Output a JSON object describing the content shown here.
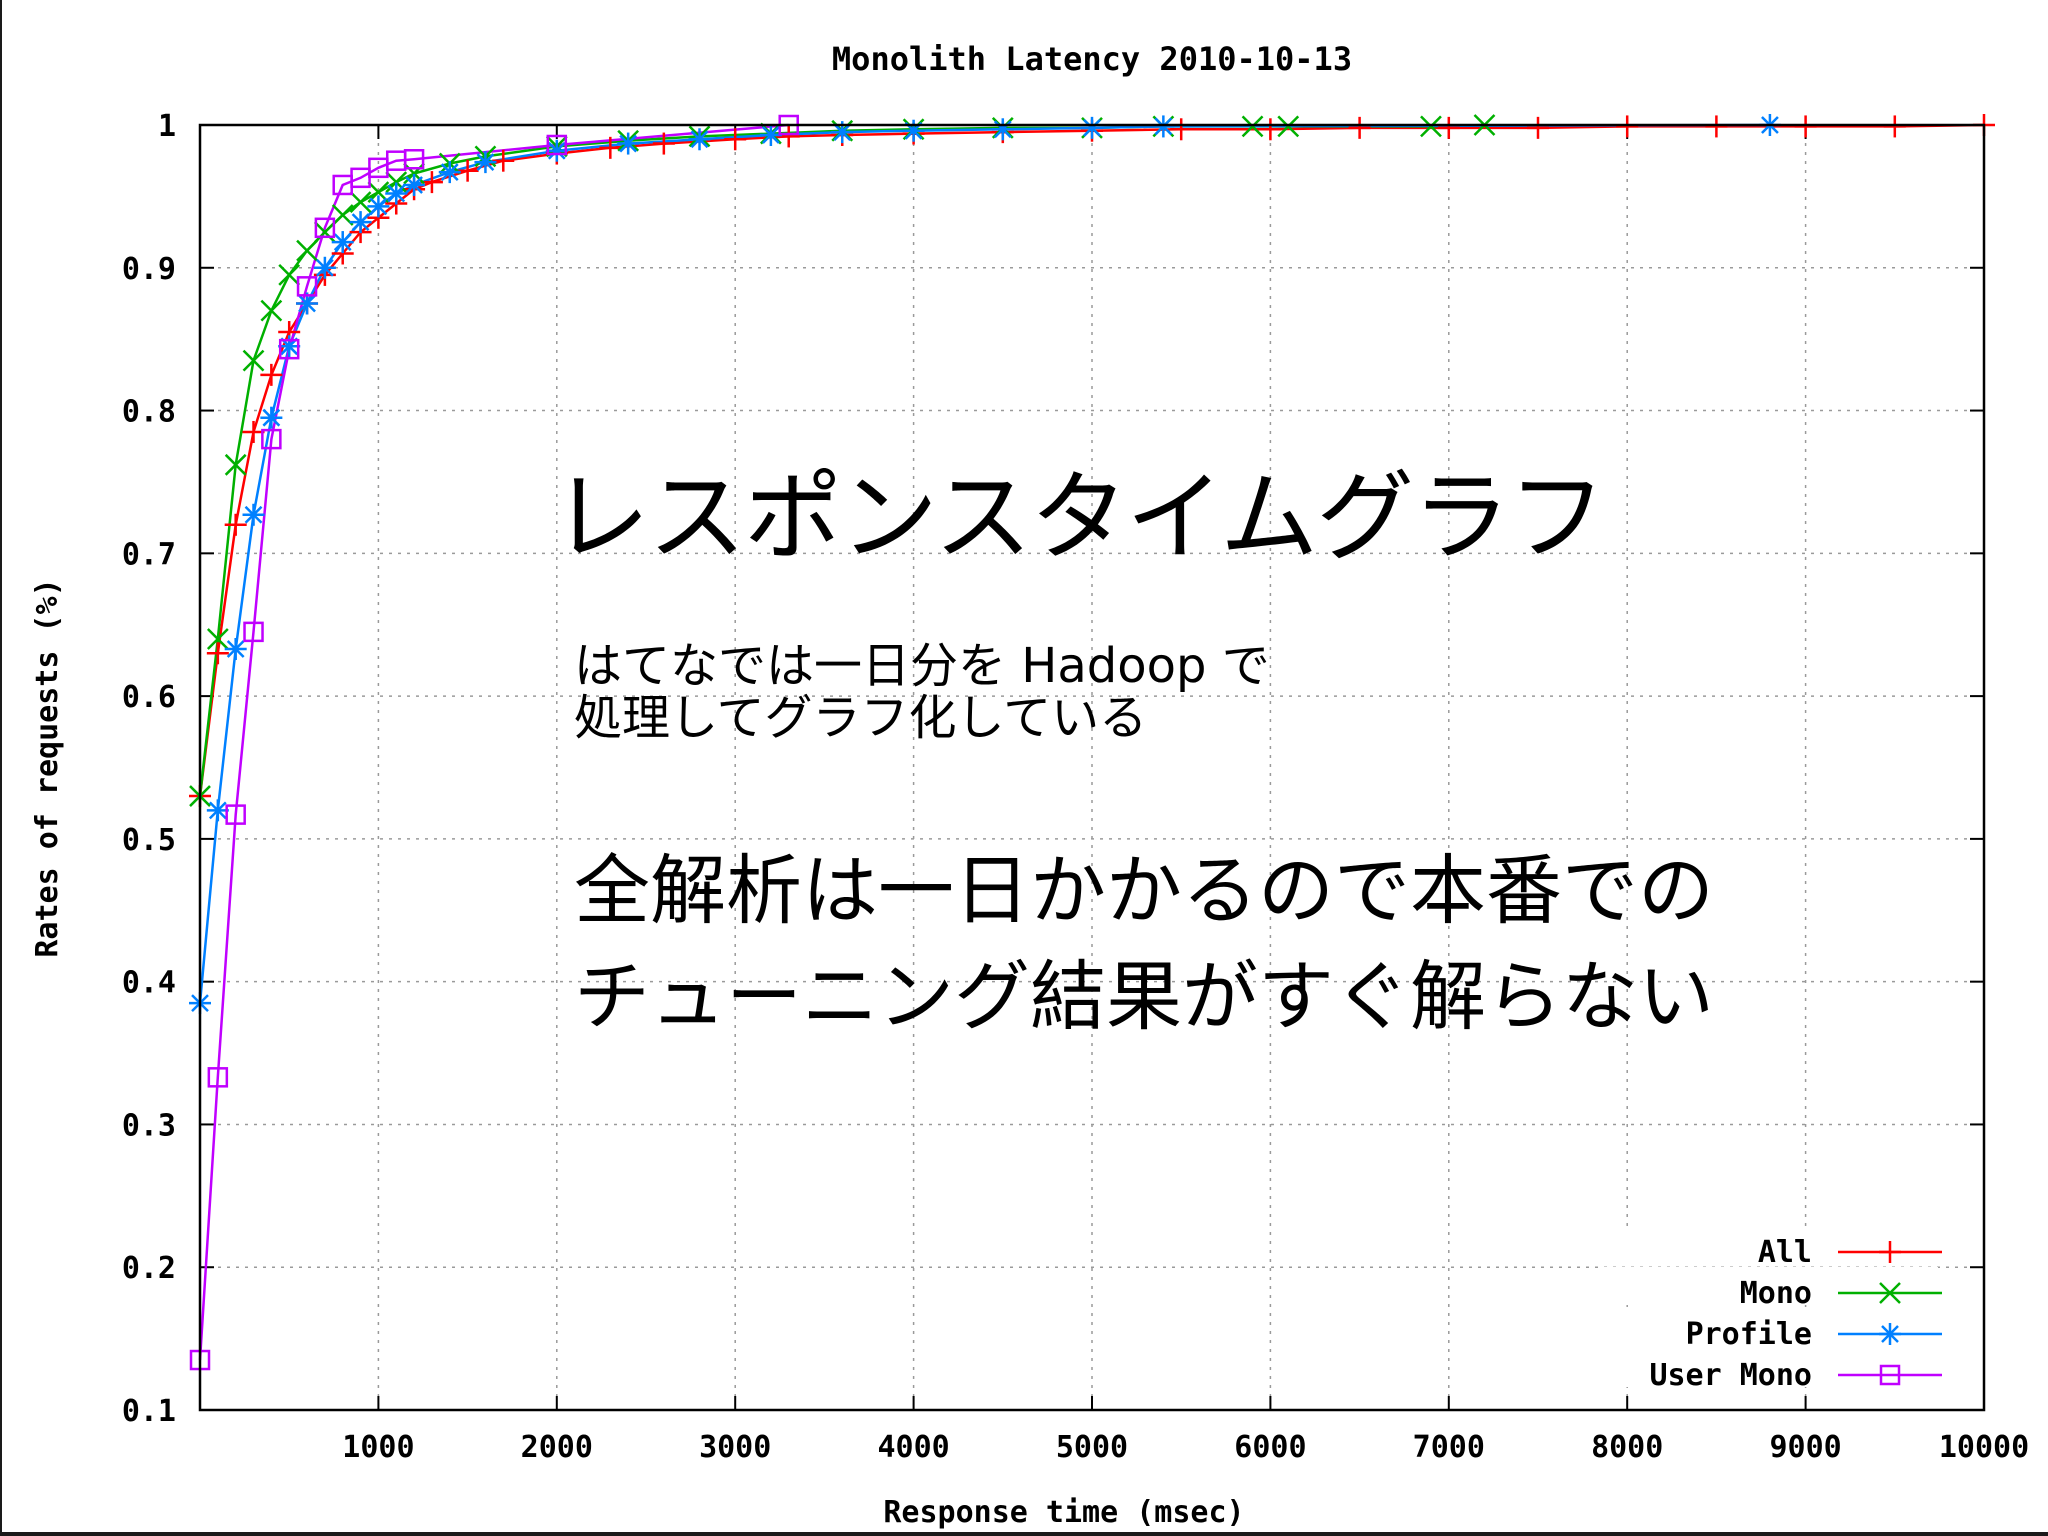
{
  "chart_data": {
    "type": "line",
    "title": "Monolith Latency 2010-10-13",
    "xlabel": "Response time (msec)",
    "ylabel": "Rates of requests (%)",
    "xlim": [
      0,
      10000
    ],
    "ylim": [
      0.1,
      1.0
    ],
    "x_ticks": [
      "1000",
      "2000",
      "3000",
      "4000",
      "5000",
      "6000",
      "7000",
      "8000",
      "9000",
      "10000"
    ],
    "y_ticks": [
      "0.1",
      "0.2",
      "0.3",
      "0.4",
      "0.5",
      "0.6",
      "0.7",
      "0.8",
      "0.9",
      "1"
    ],
    "grid": true,
    "legend_position": "bottom-right",
    "series": [
      {
        "name": "All",
        "color": "#ff0000",
        "marker": "plus",
        "x": [
          0,
          100,
          200,
          300,
          400,
          500,
          600,
          700,
          800,
          900,
          1000,
          1100,
          1200,
          1300,
          1500,
          1700,
          2000,
          2300,
          2600,
          3000,
          3300,
          3600,
          4000,
          4500,
          5000,
          5500,
          6000,
          6500,
          7000,
          7500,
          8000,
          8500,
          9000,
          9500,
          10000
        ],
        "y": [
          0.53,
          0.63,
          0.72,
          0.785,
          0.825,
          0.855,
          0.875,
          0.895,
          0.91,
          0.925,
          0.935,
          0.945,
          0.955,
          0.96,
          0.968,
          0.975,
          0.98,
          0.984,
          0.987,
          0.99,
          0.992,
          0.993,
          0.994,
          0.995,
          0.996,
          0.997,
          0.997,
          0.998,
          0.998,
          0.998,
          0.999,
          0.999,
          0.999,
          0.999,
          1.0
        ]
      },
      {
        "name": "Mono",
        "color": "#00b000",
        "marker": "cross",
        "x": [
          0,
          100,
          200,
          300,
          400,
          500,
          600,
          700,
          800,
          900,
          1000,
          1100,
          1200,
          1400,
          1600,
          2000,
          2400,
          2800,
          3200,
          3600,
          4000,
          4500,
          5000,
          5400,
          5900,
          6100,
          6900,
          7200
        ],
        "y": [
          0.53,
          0.64,
          0.762,
          0.835,
          0.87,
          0.895,
          0.912,
          0.925,
          0.937,
          0.946,
          0.953,
          0.96,
          0.966,
          0.973,
          0.978,
          0.985,
          0.989,
          0.992,
          0.994,
          0.996,
          0.997,
          0.998,
          0.998,
          0.999,
          0.999,
          0.999,
          0.999,
          1.0
        ]
      },
      {
        "name": "Profile",
        "color": "#0080ff",
        "marker": "star",
        "x": [
          0,
          100,
          200,
          300,
          400,
          500,
          600,
          700,
          800,
          900,
          1000,
          1100,
          1200,
          1400,
          1600,
          2000,
          2400,
          2800,
          3200,
          3600,
          4000,
          4500,
          5000,
          5400,
          8800
        ],
        "y": [
          0.385,
          0.52,
          0.633,
          0.727,
          0.795,
          0.845,
          0.875,
          0.9,
          0.918,
          0.932,
          0.943,
          0.952,
          0.958,
          0.967,
          0.974,
          0.982,
          0.987,
          0.99,
          0.993,
          0.995,
          0.996,
          0.997,
          0.998,
          0.999,
          1.0
        ]
      },
      {
        "name": "User Mono",
        "color": "#c000ff",
        "marker": "square",
        "x": [
          0,
          100,
          200,
          300,
          400,
          500,
          600,
          700,
          800,
          900,
          1000,
          1100,
          1200,
          2000,
          3300
        ],
        "y": [
          0.135,
          0.333,
          0.517,
          0.645,
          0.78,
          0.843,
          0.887,
          0.928,
          0.958,
          0.963,
          0.97,
          0.975,
          0.976,
          0.986,
          1.0
        ]
      }
    ]
  },
  "overlay": {
    "heading": "レスポンスタイムグラフ",
    "note_line1": "はてなでは一日分を Hadoop で",
    "note_line2": "処理してグラフ化している",
    "point_line1": "全解析は一日かかるので本番での",
    "point_line2": "チューニング結果がすぐ解らない"
  }
}
